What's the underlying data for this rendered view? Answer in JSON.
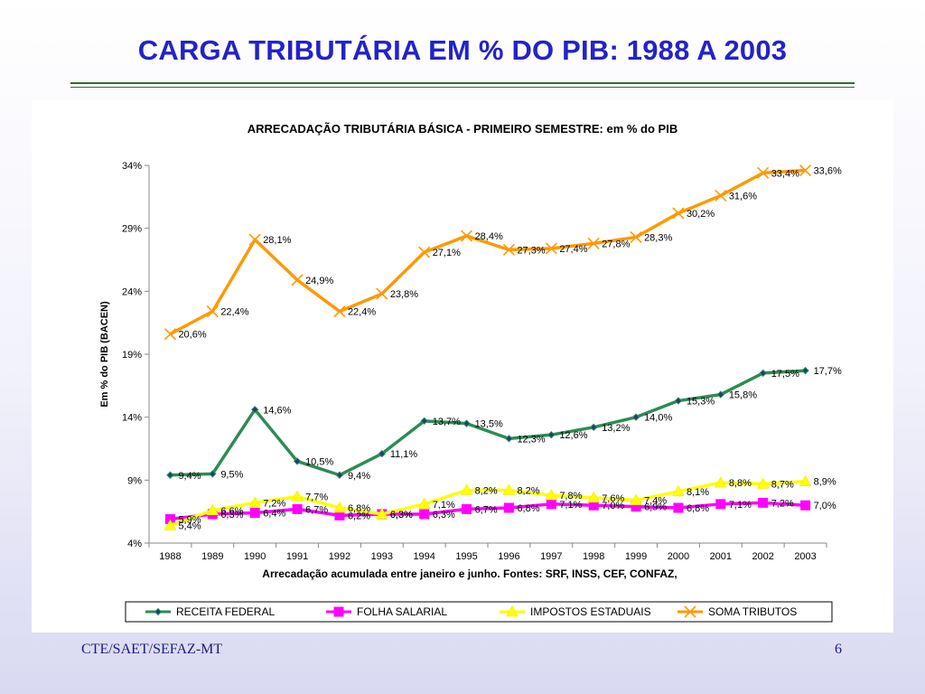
{
  "slide": {
    "title": "CARGA TRIBUTÁRIA EM % DO PIB: 1988 A 2003",
    "footer_left": "CTE/SAET/SEFAZ-MT",
    "footer_right": "6"
  },
  "chart_data": {
    "type": "line",
    "title": "ARRECADAÇÃO TRIBUTÁRIA BÁSICA - PRIMEIRO SEMESTRE: em % do PIB",
    "xlabel": "Arrecadação acumulada entre janeiro e junho. Fontes: SRF, INSS, CEF, CONFAZ,",
    "ylabel": "Em % do PIB (BACEN)",
    "categories": [
      "1988",
      "1989",
      "1990",
      "1991",
      "1992",
      "1993",
      "1994",
      "1995",
      "1996",
      "1997",
      "1998",
      "1999",
      "2000",
      "2001",
      "2002",
      "2003"
    ],
    "ylim": [
      4,
      34
    ],
    "yticks": [
      4,
      9,
      14,
      19,
      24,
      29,
      34
    ],
    "ytick_labels": [
      "4%",
      "9%",
      "14%",
      "19%",
      "24%",
      "29%",
      "34%"
    ],
    "grid": false,
    "legend_position": "bottom",
    "series": [
      {
        "name": "RECEITA FEDERAL",
        "color": "#2e8b57",
        "marker": "diamond",
        "values": [
          9.4,
          9.5,
          14.6,
          10.5,
          9.4,
          11.1,
          13.7,
          13.5,
          12.3,
          12.6,
          13.2,
          14.0,
          15.3,
          15.8,
          17.5,
          17.7
        ],
        "labels": [
          "9,4%",
          "9,5%",
          "14,6%",
          "10,5%",
          "9,4%",
          "11,1%",
          "13,7%",
          "13,5%",
          "12,3%",
          "12,6%",
          "13,2%",
          "14,0%",
          "15,3%",
          "15,8%",
          "17,5%",
          "17,7%"
        ]
      },
      {
        "name": "FOLHA SALARIAL",
        "color": "#ff00ff",
        "marker": "square",
        "values": [
          5.9,
          6.3,
          6.4,
          6.7,
          6.2,
          6.3,
          6.3,
          6.7,
          6.8,
          7.1,
          7.0,
          6.9,
          6.8,
          7.1,
          7.2,
          7.0
        ],
        "labels": [
          "5,9%",
          "6,3%",
          "6,4%",
          "6,7%",
          "6,2%",
          "6,3%",
          "6,3%",
          "6,7%",
          "6,8%",
          "7,1%",
          "7,0%",
          "6,9%",
          "6,8%",
          "7,1%",
          "7,2%",
          "7,0%"
        ]
      },
      {
        "name": "IMPOSTOS ESTADUAIS",
        "color": "#ffff00",
        "marker": "triangle",
        "values": [
          5.4,
          6.6,
          7.2,
          7.7,
          6.8,
          6.3,
          7.1,
          8.2,
          8.2,
          7.8,
          7.6,
          7.4,
          8.1,
          8.8,
          8.7,
          8.9
        ],
        "labels": [
          "5,4%",
          "6,6%",
          "7,2%",
          "7,7%",
          "6,8%",
          "6,3%",
          "7,1%",
          "8,2%",
          "8,2%",
          "7,8%",
          "7,6%",
          "7,4%",
          "8,1%",
          "8,8%",
          "8,7%",
          "8,9%"
        ]
      },
      {
        "name": "SOMA TRIBUTOS",
        "color": "#ff9900",
        "marker": "x",
        "values": [
          20.6,
          22.4,
          28.1,
          24.9,
          22.4,
          23.8,
          27.1,
          28.4,
          27.3,
          27.4,
          27.8,
          28.3,
          30.2,
          31.6,
          33.4,
          33.6
        ],
        "labels": [
          "20,6%",
          "22,4%",
          "28,1%",
          "24,9%",
          "22,4%",
          "23,8%",
          "27,1%",
          "28,4%",
          "27,3%",
          "27,4%",
          "27,8%",
          "28,3%",
          "30,2%",
          "31,6%",
          "33,4%",
          "33,6%"
        ]
      }
    ]
  }
}
